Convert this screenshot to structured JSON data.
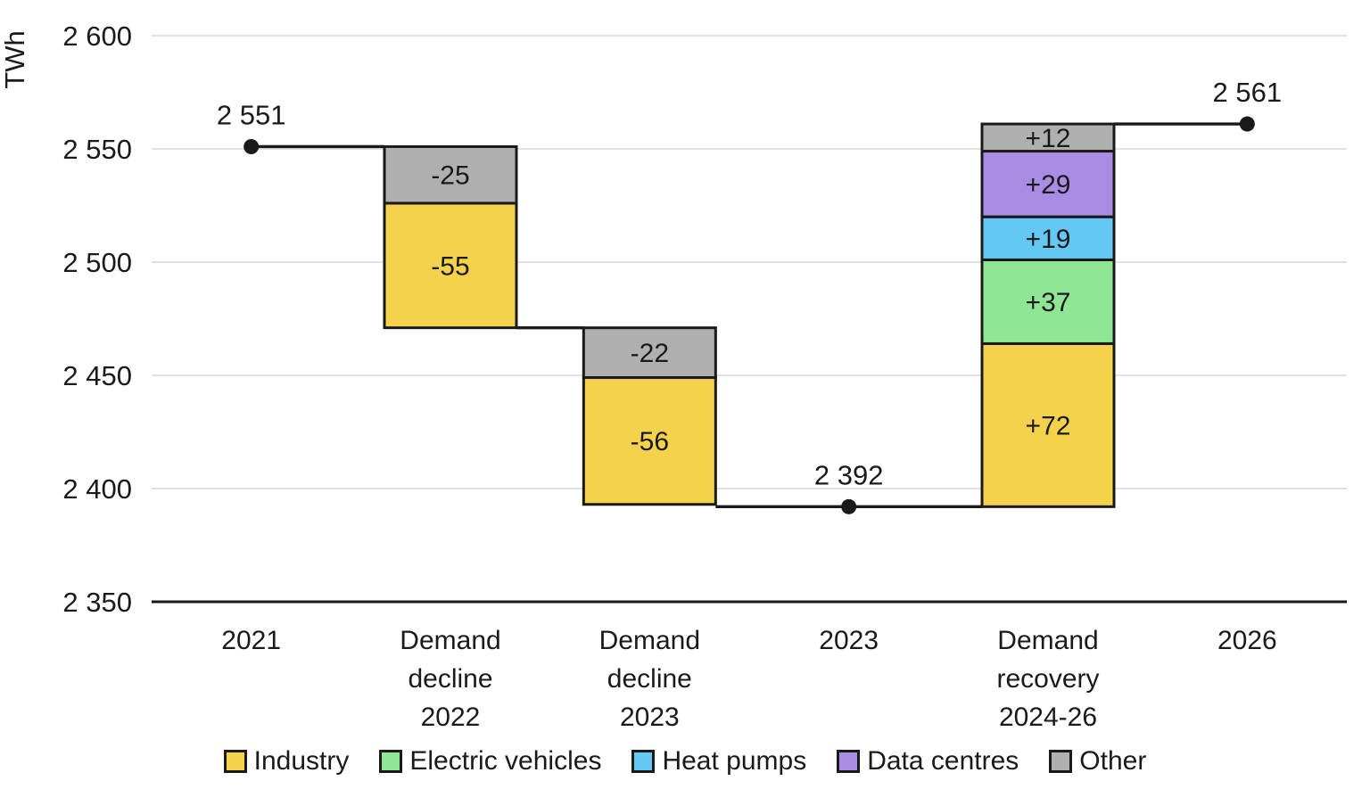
{
  "chart_data": {
    "type": "waterfall",
    "unit": "TWh",
    "background": "#FFFFFF",
    "text_color": "#1A1A1A",
    "grid_color": "#E2E2E2",
    "axis_color": "#1A1A1A",
    "grid_on": true,
    "legend_position": "bottom",
    "y_axis": {
      "min": 2350,
      "max": 2600,
      "tick_step": 50,
      "ticks": [
        {
          "value": 2600,
          "label": "2 600"
        },
        {
          "value": 2550,
          "label": "2 550"
        },
        {
          "value": 2500,
          "label": "2 500"
        },
        {
          "value": 2450,
          "label": "2 450"
        },
        {
          "value": 2400,
          "label": "2 400"
        },
        {
          "value": 2350,
          "label": "2 350"
        }
      ]
    },
    "categories": [
      {
        "lines": [
          "2021"
        ]
      },
      {
        "lines": [
          "Demand",
          "decline",
          "2022"
        ]
      },
      {
        "lines": [
          "Demand",
          "decline",
          "2023"
        ]
      },
      {
        "lines": [
          "2023"
        ]
      },
      {
        "lines": [
          "Demand",
          "recovery",
          "2024-26"
        ]
      },
      {
        "lines": [
          "2026"
        ]
      }
    ],
    "series_colors": {
      "Industry": "#F4D24B",
      "Electric vehicles": "#8FE695",
      "Heat pumps": "#64C8F2",
      "Data centres": "#A98CE3",
      "Other": "#B0B0B0"
    },
    "columns": [
      {
        "category_index": 1,
        "start": 2551,
        "segments": [
          {
            "series": "Other",
            "value": -25,
            "label": "-25"
          },
          {
            "series": "Industry",
            "value": -55,
            "label": "-55"
          }
        ]
      },
      {
        "category_index": 2,
        "start": 2471,
        "segments": [
          {
            "series": "Other",
            "value": -22,
            "label": "-22"
          },
          {
            "series": "Industry",
            "value": -56,
            "label": "-56"
          }
        ]
      },
      {
        "category_index": 4,
        "start": 2392,
        "segments": [
          {
            "series": "Industry",
            "value": 72,
            "label": "+72"
          },
          {
            "series": "Electric vehicles",
            "value": 37,
            "label": "+37"
          },
          {
            "series": "Heat pumps",
            "value": 19,
            "label": "+19"
          },
          {
            "series": "Data centres",
            "value": 29,
            "label": "+29",
            "label_color": "#FFFFFF"
          },
          {
            "series": "Other",
            "value": 12,
            "label": "+12"
          }
        ]
      }
    ],
    "anchors": [
      {
        "category_index": 0,
        "value": 2551,
        "label": "2 551"
      },
      {
        "category_index": 3,
        "value": 2392,
        "label": "2 392"
      },
      {
        "category_index": 5,
        "value": 2561,
        "label": "2 561"
      }
    ],
    "connectors": [
      {
        "value": 2551,
        "from_cat": 0,
        "from_at": "center",
        "to_cat": 1,
        "to_at": "left"
      },
      {
        "value": 2471,
        "from_cat": 1,
        "from_at": "right",
        "to_cat": 2,
        "to_at": "left"
      },
      {
        "value": 2392,
        "from_cat": 2,
        "from_at": "right",
        "to_cat": 4,
        "to_at": "left"
      },
      {
        "value": 2561,
        "from_cat": 4,
        "from_at": "right",
        "to_cat": 5,
        "to_at": "center"
      }
    ],
    "legend": [
      {
        "label": "Industry",
        "series": "Industry"
      },
      {
        "label": "Electric vehicles",
        "series": "Electric vehicles"
      },
      {
        "label": "Heat pumps",
        "series": "Heat pumps"
      },
      {
        "label": "Data centres",
        "series": "Data centres"
      },
      {
        "label": "Other",
        "series": "Other"
      }
    ]
  }
}
